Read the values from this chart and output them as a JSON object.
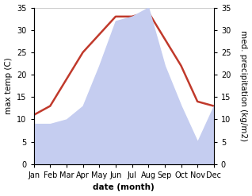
{
  "months": [
    "Jan",
    "Feb",
    "Mar",
    "Apr",
    "May",
    "Jun",
    "Jul",
    "Aug",
    "Sep",
    "Oct",
    "Nov",
    "Dec"
  ],
  "temperature": [
    11,
    13,
    19,
    25,
    29,
    33,
    33,
    34,
    28,
    22,
    14,
    13
  ],
  "precipitation": [
    9,
    9,
    10,
    13,
    22,
    32,
    33,
    35,
    22,
    13,
    5,
    13
  ],
  "temp_color": "#c0392b",
  "precip_fill_color": "#c5cdf0",
  "precip_fill_alpha": 1.0,
  "ylabel_left": "max temp (C)",
  "ylabel_right": "med. precipitation (kg/m2)",
  "xlabel": "date (month)",
  "ylim": [
    0,
    35
  ],
  "yticks": [
    0,
    5,
    10,
    15,
    20,
    25,
    30,
    35
  ],
  "background_color": "#ffffff",
  "label_fontsize": 7.5,
  "tick_fontsize": 7,
  "linewidth": 1.8
}
